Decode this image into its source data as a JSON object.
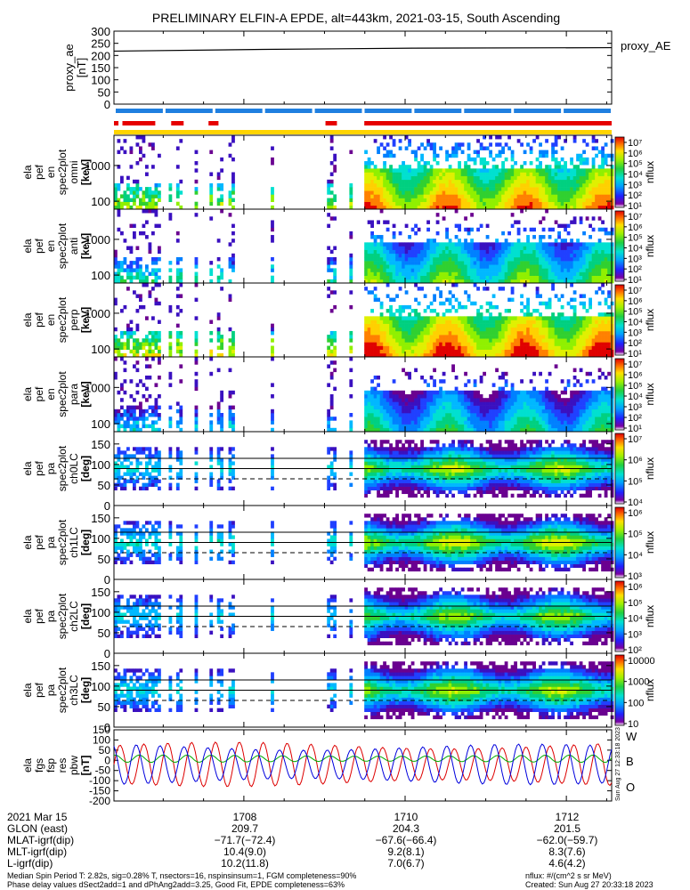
{
  "title": "PRELIMINARY ELFIN-A EPDE, alt=443km, 2021-03-15, South Ascending",
  "colors": {
    "bar_blue": "#1f7fe0",
    "bar_red": "#e60000",
    "bar_yellow": "#ffd400",
    "B_red": "#dd0000",
    "B_green": "#00aa00",
    "B_blue": "#0000dd"
  },
  "chart_data": [
    {
      "type": "line",
      "panel": "proxy_ae",
      "ylabel": [
        "proxy_ae",
        "[nT]"
      ],
      "ylim": [
        0,
        300
      ],
      "yticks": [
        "0",
        "50",
        "100",
        "150",
        "200",
        "250",
        "300"
      ],
      "legend": "proxy_AE",
      "series": [
        {
          "name": "proxy_AE",
          "x_frac": [
            0,
            0.3,
            0.6,
            1
          ],
          "values": [
            218,
            225,
            230,
            232
          ]
        }
      ]
    },
    {
      "type": "heatmap",
      "panel": "omni",
      "ylabel": [
        "ela",
        "pef",
        "en",
        "spec2plot",
        "omni",
        "[keV]"
      ],
      "yscale": "log",
      "ylim": [
        60,
        7000
      ],
      "yticks": [
        "100",
        "1000"
      ],
      "colorbar": {
        "label": "nflux",
        "ticks": [
          "10⁷",
          "10⁶",
          "10⁵",
          "10⁴",
          "10³",
          "10²",
          "10¹"
        ]
      }
    },
    {
      "type": "heatmap",
      "panel": "anti",
      "ylabel": [
        "ela",
        "pef",
        "en",
        "spec2plot",
        "anti",
        "[keV]"
      ],
      "yscale": "log",
      "ylim": [
        60,
        7000
      ],
      "yticks": [
        "100",
        "1000"
      ],
      "colorbar": {
        "label": "nflux",
        "ticks": [
          "10⁷",
          "10⁶",
          "10⁵",
          "10⁴",
          "10³",
          "10²",
          "10¹"
        ]
      }
    },
    {
      "type": "heatmap",
      "panel": "perp",
      "ylabel": [
        "ela",
        "pef",
        "en",
        "spec2plot",
        "perp",
        "[keV]"
      ],
      "yscale": "log",
      "ylim": [
        60,
        7000
      ],
      "yticks": [
        "100",
        "1000"
      ],
      "colorbar": {
        "label": "nflux",
        "ticks": [
          "10⁷",
          "10⁶",
          "10⁵",
          "10⁴",
          "10³",
          "10²",
          "10¹"
        ]
      }
    },
    {
      "type": "heatmap",
      "panel": "para",
      "ylabel": [
        "ela",
        "pef",
        "en",
        "spec2plot",
        "para",
        "[keV]"
      ],
      "yscale": "log",
      "ylim": [
        60,
        7000
      ],
      "yticks": [
        "100",
        "1000"
      ],
      "colorbar": {
        "label": "nflux",
        "ticks": [
          "10⁷",
          "10⁶",
          "10⁵",
          "10⁴",
          "10³",
          "10²",
          "10¹"
        ]
      }
    },
    {
      "type": "heatmap",
      "panel": "ch0LC",
      "ylabel": [
        "ela",
        "pef",
        "pa",
        "spec2plot",
        "ch0LC",
        "[deg]"
      ],
      "ylim": [
        0,
        180
      ],
      "yticks": [
        "0",
        "50",
        "100",
        "150"
      ],
      "colorbar": {
        "label": "nflux",
        "ticks": [
          "10⁷",
          "10⁶",
          "10⁵",
          "10⁴"
        ]
      }
    },
    {
      "type": "heatmap",
      "panel": "ch1LC",
      "ylabel": [
        "ela",
        "pef",
        "pa",
        "spec2plot",
        "ch1LC",
        "[deg]"
      ],
      "ylim": [
        0,
        180
      ],
      "yticks": [
        "0",
        "50",
        "100",
        "150"
      ],
      "colorbar": {
        "label": "nflux",
        "ticks": [
          "10⁶",
          "10⁵",
          "10⁴",
          "10³"
        ]
      }
    },
    {
      "type": "heatmap",
      "panel": "ch2LC",
      "ylabel": [
        "ela",
        "pef",
        "pa",
        "spec2plot",
        "ch2LC",
        "[deg]"
      ],
      "ylim": [
        0,
        180
      ],
      "yticks": [
        "0",
        "50",
        "100",
        "150"
      ],
      "colorbar": {
        "label": "nflux",
        "ticks": [
          "10⁶",
          "10⁵",
          "10⁴",
          "10³",
          "10²"
        ]
      }
    },
    {
      "type": "heatmap",
      "panel": "ch3LC",
      "ylabel": [
        "ela",
        "pef",
        "pa",
        "spec2plot",
        "ch3LC",
        "[deg]"
      ],
      "ylim": [
        0,
        180
      ],
      "yticks": [
        "0",
        "50",
        "100",
        "150"
      ],
      "colorbar": {
        "label": "nflux",
        "ticks": [
          "10000",
          "1000",
          "100",
          "10"
        ]
      }
    },
    {
      "type": "line",
      "panel": "dB",
      "ylabel": [
        "ela",
        "fgs",
        "fsp",
        "res",
        "pbw",
        "[nT]"
      ],
      "ylim": [
        -200,
        150
      ],
      "yticks": [
        "150",
        "100",
        "50",
        "0",
        "-50",
        "-100",
        "-150",
        "-200"
      ],
      "legend_labels": [
        "W",
        "B",
        "O"
      ],
      "series": [
        {
          "name": "W",
          "amplitude": 110,
          "period_frac": 0.048,
          "phase": 0.0
        },
        {
          "name": "B",
          "amplitude": 18,
          "period_frac": 0.048,
          "phase": 1.2
        },
        {
          "name": "O",
          "amplitude": 100,
          "period_frac": 0.048,
          "phase": 2.0
        }
      ],
      "side_note": "Sun Aug 27 12:33:18 2023"
    }
  ],
  "footer": {
    "row_labels": [
      "2021 Mar 15",
      "GLON (east)",
      "MLAT-igrf(dip)",
      "MLT-igrf(dip)",
      "L-igrf(dip)"
    ],
    "columns": [
      {
        "time": "1708",
        "glon": "209.7",
        "mlat": "−71.7(−72.4)",
        "mlt": "10.4(9.0)",
        "l": "10.2(11.8)"
      },
      {
        "time": "1710",
        "glon": "204.3",
        "mlat": "−67.6(−66.4)",
        "mlt": "9.2(8.1)",
        "l": "7.0(6.7)"
      },
      {
        "time": "1712",
        "glon": "201.5",
        "mlat": "−62.0(−59.7)",
        "mlt": "8.3(7.6)",
        "l": "4.6(4.2)"
      }
    ],
    "note_left_1": "Median Spin Period T: 2.82s, sig=0.28% T, nsectors=16, nspinsinsum=1, FGM completeness=90%",
    "note_left_2": "Phase delay values dSect2add=1 and dPhAng2add=3.25, Good Fit, EPDE completeness=63%",
    "note_right_1": "nflux: #/(cm^2 s sr MeV)",
    "note_right_2": "Created: Sun Aug 27 20:33:18 2023"
  }
}
